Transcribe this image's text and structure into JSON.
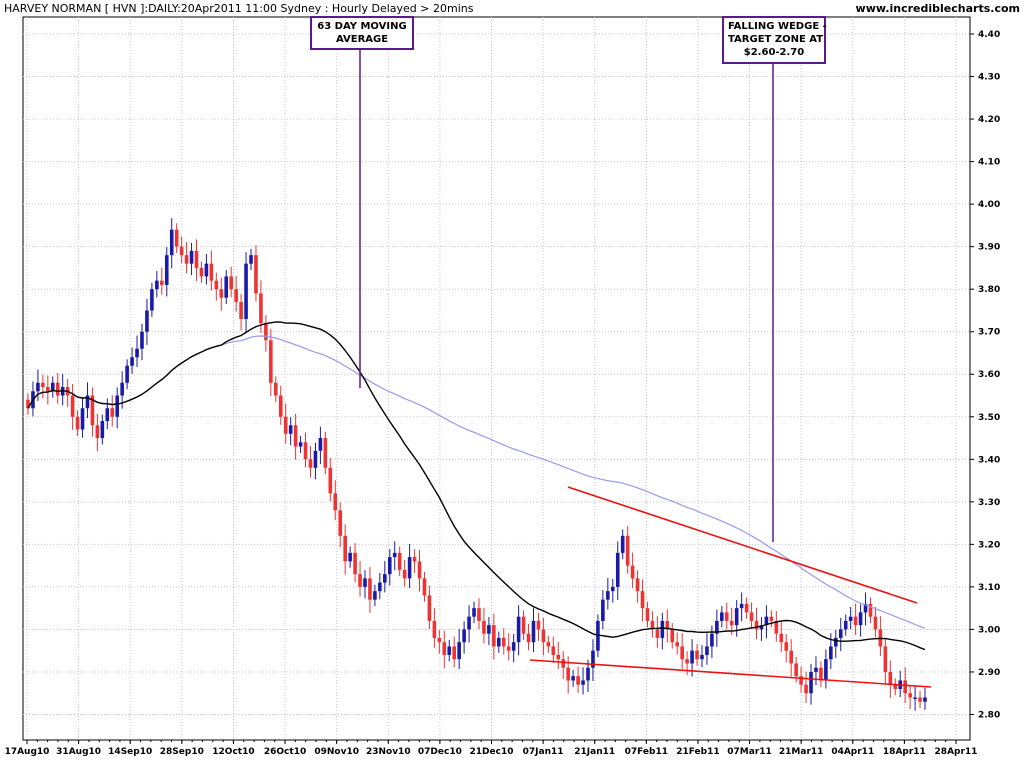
{
  "header": {
    "title": "HARVEY NORMAN [ HVN ]:DAILY:20Apr2011 11:00 Sydney : Hourly Delayed > 20mins",
    "source": "www.incrediblecharts.com"
  },
  "annotations": {
    "ma_note": [
      "63 DAY MOVING",
      "AVERAGE"
    ],
    "wedge_note": [
      "FALLING WEDGE -",
      "TARGET ZONE AT",
      "$2.60-2.70"
    ]
  },
  "colors": {
    "up": "#1a1aa8",
    "down": "#ee3333",
    "ma63": "#000000",
    "ma_long": "#9999ee",
    "trendline": "#ee1111",
    "grid": "#c8c8d8",
    "note_border": "#5a1a8c"
  },
  "chart_data": {
    "type": "candlestick",
    "x_ticks": [
      "17Aug10",
      "31Aug10",
      "14Sep10",
      "28Sep10",
      "12Oct10",
      "26Oct10",
      "09Nov10",
      "23Nov10",
      "07Dec10",
      "21Dec10",
      "07Jan11",
      "21Jan11",
      "07Feb11",
      "21Feb11",
      "07Mar11",
      "21Mar11",
      "04Apr11",
      "18Apr11",
      "28Apr11"
    ],
    "y_ticks": [
      "2.80",
      "2.90",
      "3.00",
      "3.10",
      "3.20",
      "3.30",
      "3.40",
      "3.50",
      "3.60",
      "3.70",
      "3.80",
      "3.90",
      "4.00",
      "4.10",
      "4.20",
      "4.30",
      "4.40"
    ],
    "ylim": [
      2.74,
      4.44
    ],
    "closes": [
      3.52,
      3.56,
      3.58,
      3.57,
      3.56,
      3.58,
      3.55,
      3.57,
      3.55,
      3.5,
      3.47,
      3.52,
      3.55,
      3.48,
      3.45,
      3.49,
      3.52,
      3.5,
      3.55,
      3.58,
      3.62,
      3.64,
      3.66,
      3.7,
      3.75,
      3.8,
      3.82,
      3.81,
      3.88,
      3.94,
      3.9,
      3.88,
      3.86,
      3.89,
      3.85,
      3.83,
      3.86,
      3.82,
      3.8,
      3.78,
      3.83,
      3.8,
      3.77,
      3.73,
      3.86,
      3.88,
      3.79,
      3.72,
      3.68,
      3.58,
      3.55,
      3.5,
      3.46,
      3.48,
      3.43,
      3.44,
      3.4,
      3.38,
      3.42,
      3.45,
      3.38,
      3.32,
      3.28,
      3.22,
      3.16,
      3.18,
      3.13,
      3.1,
      3.12,
      3.07,
      3.09,
      3.11,
      3.13,
      3.17,
      3.18,
      3.14,
      3.12,
      3.17,
      3.16,
      3.12,
      3.08,
      3.02,
      2.98,
      2.97,
      2.94,
      2.96,
      2.93,
      2.97,
      3.0,
      3.03,
      3.05,
      3.02,
      2.99,
      3.01,
      2.96,
      2.98,
      2.96,
      2.95,
      2.97,
      3.03,
      2.99,
      2.97,
      3.02,
      3.0,
      2.97,
      2.96,
      2.94,
      2.93,
      2.91,
      2.88,
      2.89,
      2.87,
      2.88,
      2.91,
      2.95,
      3.02,
      3.07,
      3.09,
      3.1,
      3.18,
      3.22,
      3.15,
      3.12,
      3.09,
      3.05,
      3.02,
      3.0,
      2.98,
      3.02,
      3.0,
      2.97,
      2.96,
      2.93,
      2.92,
      2.95,
      2.93,
      2.94,
      2.96,
      2.99,
      3.02,
      3.04,
      3.02,
      3.01,
      3.05,
      3.06,
      3.04,
      3.02,
      3.0,
      3.01,
      3.03,
      3.02,
      2.99,
      2.97,
      2.95,
      2.92,
      2.89,
      2.87,
      2.85,
      2.9,
      2.91,
      2.88,
      2.93,
      2.96,
      2.98,
      3.0,
      3.02,
      3.03,
      3.01,
      3.04,
      3.06,
      3.03,
      3.0,
      2.96,
      2.9,
      2.87,
      2.86,
      2.88,
      2.85,
      2.84,
      2.84,
      2.83,
      2.84
    ]
  }
}
